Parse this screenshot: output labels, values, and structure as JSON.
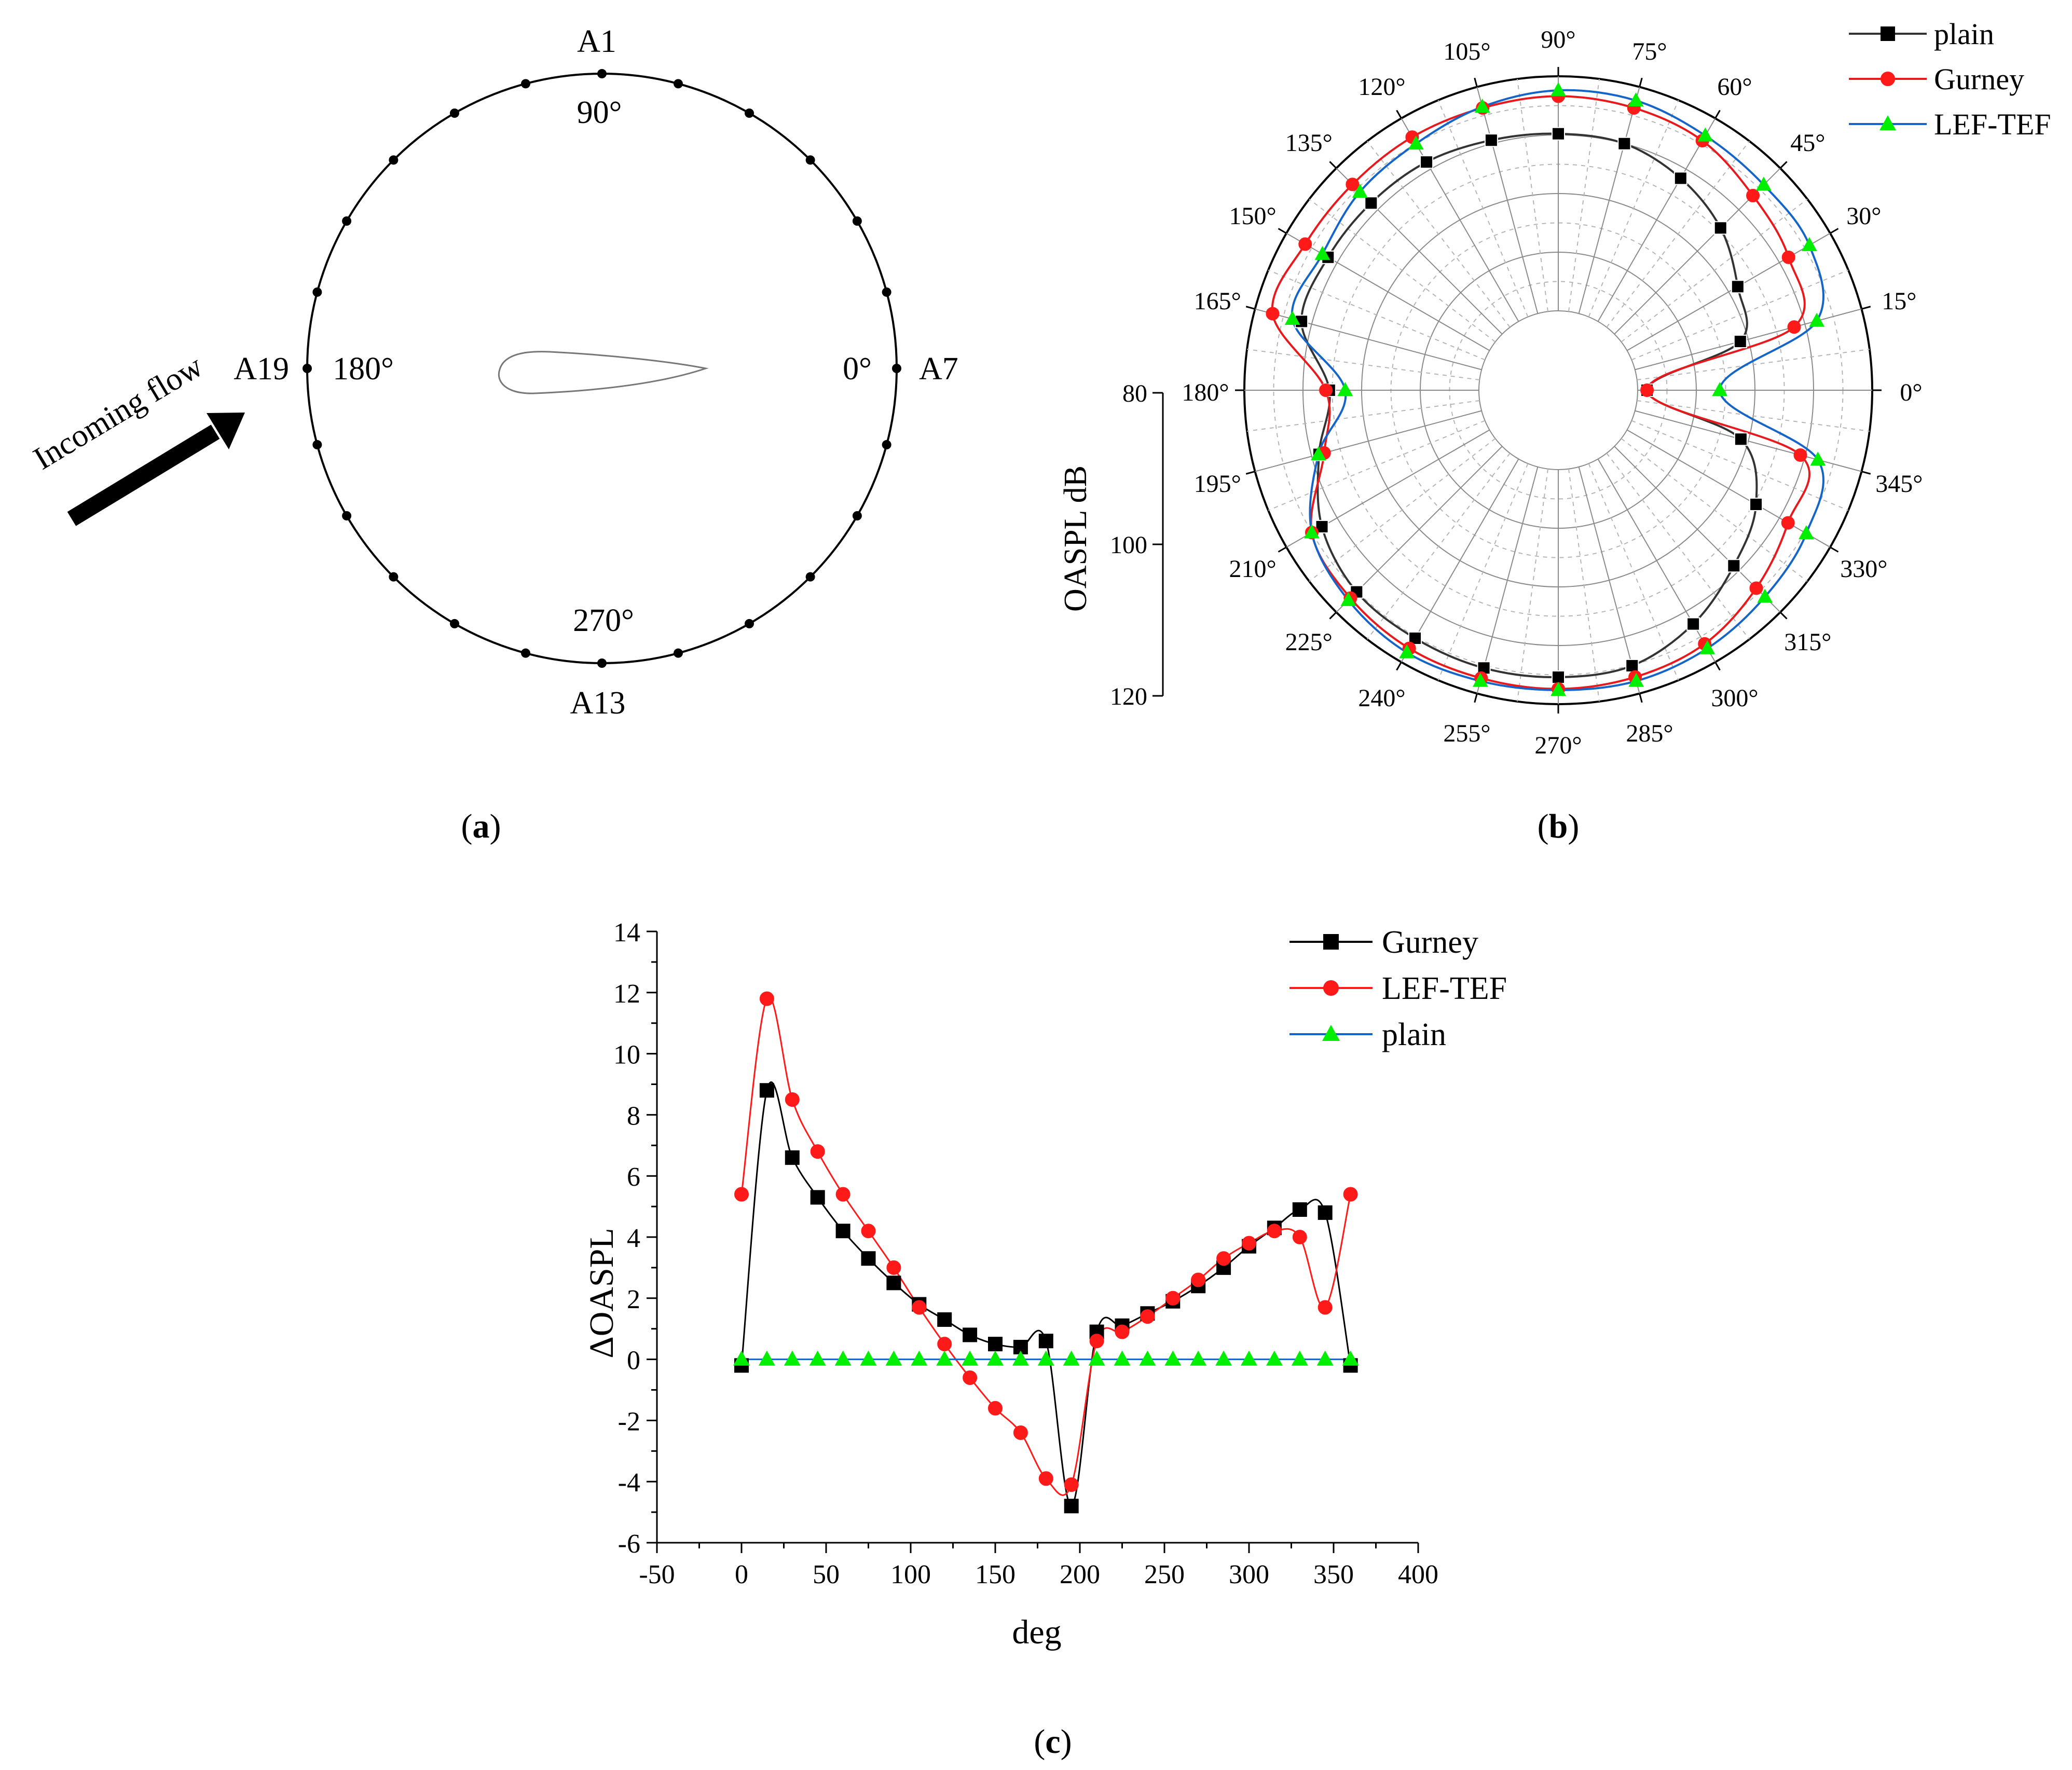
{
  "panel_labels": {
    "a": "(a)",
    "b": "(b)",
    "c": "(c)"
  },
  "colors": {
    "plain": "#333333",
    "gurney": "#e8191c",
    "leftef": "#1565c8",
    "green": "#00ee00",
    "red": "#ff1a1a",
    "black": "#000000"
  },
  "panel_a": {
    "labels": {
      "a1": "A1",
      "a7": "A7",
      "a13": "A13",
      "a19": "A19",
      "deg90": "90°",
      "deg0": "0°",
      "deg270": "270°",
      "deg180": "180°"
    },
    "flow_label": "Incoming flow",
    "sensor_count": 24
  },
  "chart_data": [
    {
      "type": "polar-line",
      "panel": "b",
      "radial_axis_label": "OASPL dB",
      "radial_ticks": [
        "80",
        "100",
        "120"
      ],
      "radial_range": [
        80,
        120
      ],
      "angle_labels": [
        "0°",
        "15°",
        "30°",
        "45°",
        "60°",
        "75°",
        "90°",
        "105°",
        "120°",
        "135°",
        "150°",
        "165°",
        "180°",
        "195°",
        "210°",
        "225°",
        "240°",
        "255°",
        "270°",
        "285°",
        "300°",
        "315°",
        "330°",
        "345°"
      ],
      "angles_deg": [
        0,
        15,
        30,
        45,
        60,
        75,
        90,
        105,
        120,
        135,
        150,
        165,
        180,
        195,
        210,
        225,
        240,
        255,
        270,
        285,
        300,
        315,
        330,
        345
      ],
      "legend_position": "top-right",
      "series": [
        {
          "name": "plain",
          "marker": "square",
          "values": [
            81.6,
            98.6,
            101.8,
            105.6,
            108.2,
            110.0,
            110.2,
            110.6,
            111.4,
            111.6,
            111.8,
            111.8,
            105.5,
            108.7,
            113.0,
            115.1,
            115.3,
            115.5,
            115.4,
            115.1,
            112.5,
            108.8,
            105.4,
            98.7
          ]
        },
        {
          "name": "Gurney",
          "marker": "circle",
          "values": [
            81.6,
            108.1,
            111.8,
            113.4,
            115.6,
            116.3,
            116.6,
            116.3,
            116.3,
            116.1,
            116.3,
            116.9,
            106.1,
            107.8,
            115.0,
            116.6,
            117.3,
            117.3,
            117.4,
            117.1,
            116.4,
            114.2,
            111.7,
            109.2
          ]
        },
        {
          "name": "LEF-TEF",
          "marker": "triangle",
          "values": [
            94.0,
            112.1,
            115.9,
            116.0,
            116.6,
            117.6,
            117.6,
            116.5,
            115.0,
            114.3,
            112.9,
            113.4,
            102.8,
            108.8,
            115.0,
            117.1,
            118.1,
            117.8,
            117.6,
            117.8,
            117.3,
            116.3,
            115.3,
            112.3
          ]
        }
      ]
    },
    {
      "type": "line",
      "panel": "c",
      "xlabel": "deg",
      "ylabel": "ΔOASPL",
      "xlim": [
        -50,
        400
      ],
      "ylim": [
        -6,
        14
      ],
      "xticks": [
        "-50",
        "0",
        "50",
        "100",
        "150",
        "200",
        "250",
        "300",
        "350",
        "400"
      ],
      "yticks": [
        "-6",
        "-4",
        "-2",
        "0",
        "2",
        "4",
        "6",
        "8",
        "10",
        "12",
        "14"
      ],
      "x": [
        0,
        15,
        30,
        45,
        60,
        75,
        90,
        105,
        120,
        135,
        150,
        165,
        180,
        195,
        210,
        225,
        240,
        255,
        270,
        285,
        300,
        315,
        330,
        345,
        360
      ],
      "legend_position": "top-right",
      "series": [
        {
          "name": "Gurney",
          "marker": "square",
          "values": [
            -0.2,
            8.8,
            6.6,
            5.3,
            4.2,
            3.3,
            2.5,
            1.8,
            1.3,
            0.8,
            0.5,
            0.4,
            0.6,
            -4.8,
            0.9,
            1.1,
            1.5,
            1.9,
            2.4,
            3.0,
            3.7,
            4.3,
            4.9,
            4.8,
            -0.2
          ]
        },
        {
          "name": "LEF-TEF",
          "marker": "circle",
          "values": [
            5.4,
            11.8,
            8.5,
            6.8,
            5.4,
            4.2,
            3.0,
            1.7,
            0.5,
            -0.6,
            -1.6,
            -2.4,
            -3.9,
            -4.1,
            0.6,
            0.9,
            1.4,
            2.0,
            2.6,
            3.3,
            3.8,
            4.2,
            4.0,
            1.7,
            5.4
          ]
        },
        {
          "name": "plain",
          "marker": "triangle",
          "values": [
            0,
            0,
            0,
            0,
            0,
            0,
            0,
            0,
            0,
            0,
            0,
            0,
            0,
            0,
            0,
            0,
            0,
            0,
            0,
            0,
            0,
            0,
            0,
            0,
            0
          ]
        }
      ]
    }
  ]
}
